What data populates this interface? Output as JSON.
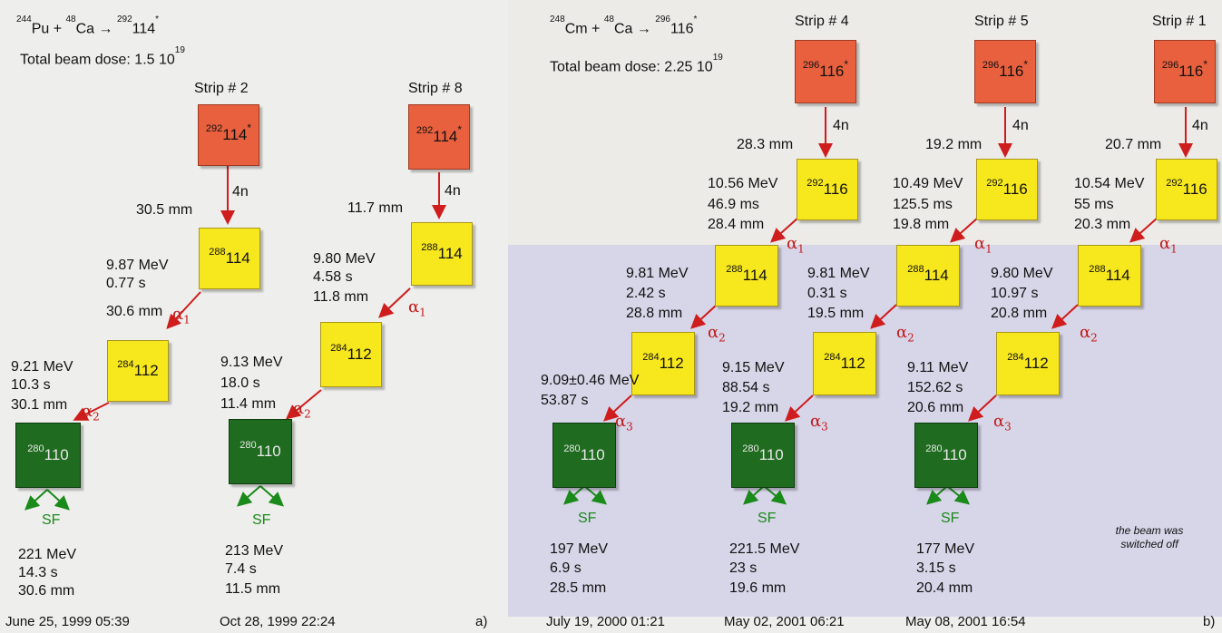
{
  "panel_a": {
    "reaction": {
      "t1": "Pu + ",
      "t2": "Ca → ",
      "t3": "114",
      "n1": "244",
      "n2": "48",
      "n3": "292",
      "star": "*"
    },
    "dose": "Total beam dose: 1.5 10",
    "dose_exp": "19",
    "label": "a)",
    "chains": [
      {
        "strip": "Strip # 2",
        "parent": {
          "mass": "292",
          "el": "114",
          "star": "*"
        },
        "dist0": "30.5 mm",
        "d1": {
          "mass": "288",
          "el": "114",
          "energy": "9.87 MeV",
          "time": "0.77 s",
          "dist": "30.6 mm",
          "alpha": "α",
          "sub": "1"
        },
        "d2": {
          "mass": "284",
          "el": "112",
          "energy": "9.21 MeV",
          "time": "10.3 s",
          "dist": "30.1 mm",
          "alpha": "α",
          "sub": "2"
        },
        "d3": {
          "mass": "280",
          "el": "110"
        },
        "sf": {
          "label": "SF",
          "energy": "221 MeV",
          "time": "14.3 s",
          "dist": "30.6 mm"
        },
        "date": "June 25, 1999 05:39"
      },
      {
        "strip": "Strip # 8",
        "parent": {
          "mass": "292",
          "el": "114",
          "star": "*"
        },
        "dist0": "11.7 mm",
        "d1": {
          "mass": "288",
          "el": "114",
          "energy": "9.80 MeV",
          "time": "4.58 s",
          "dist": "11.8 mm",
          "alpha": "α",
          "sub": "1"
        },
        "d2": {
          "mass": "284",
          "el": "112",
          "energy": "9.13 MeV",
          "time": "18.0 s",
          "dist": "11.4 mm",
          "alpha": "α",
          "sub": "2"
        },
        "d3": {
          "mass": "280",
          "el": "110"
        },
        "sf": {
          "label": "SF",
          "energy": "213 MeV",
          "time": "7.4 s",
          "dist": "11.5 mm"
        },
        "date": "Oct 28, 1999 22:24"
      }
    ]
  },
  "panel_b": {
    "reaction": {
      "t1": "Cm + ",
      "t2": "Ca → ",
      "t3": "116",
      "n1": "248",
      "n2": "48",
      "n3": "296",
      "star": "*"
    },
    "dose": "Total beam dose: 2.25 10",
    "dose_exp": "19",
    "label": "b)",
    "note": "the beam was switched off",
    "chains": [
      {
        "strip": "Strip # 4",
        "parent": {
          "mass": "296",
          "el": "116",
          "star": "*"
        },
        "dist0": "28.3 mm",
        "d1": {
          "mass": "292",
          "el": "116",
          "energy": "10.56 MeV",
          "time": "46.9 ms",
          "dist": "28.4 mm",
          "alpha": "α",
          "sub": "1"
        },
        "d2": {
          "mass": "288",
          "el": "114",
          "energy": "9.81 MeV",
          "time": "2.42 s",
          "dist": "28.8 mm",
          "alpha": "α",
          "sub": "2"
        },
        "d3": {
          "mass": "284",
          "el": "112",
          "energy": "9.09±0.46 MeV",
          "time": "53.87 s",
          "dist": "",
          "alpha": "α",
          "sub": "3"
        },
        "d4": {
          "mass": "280",
          "el": "110"
        },
        "sf": {
          "label": "SF",
          "energy": "197 MeV",
          "time": "6.9 s",
          "dist": "28.5 mm"
        },
        "date": "July 19, 2000 01:21"
      },
      {
        "strip": "Strip # 5",
        "parent": {
          "mass": "296",
          "el": "116",
          "star": "*"
        },
        "dist0": "19.2 mm",
        "d1": {
          "mass": "292",
          "el": "116",
          "energy": "10.49 MeV",
          "time": "125.5 ms",
          "dist": "19.8 mm",
          "alpha": "α",
          "sub": "1"
        },
        "d2": {
          "mass": "288",
          "el": "114",
          "energy": "9.81 MeV",
          "time": "0.31 s",
          "dist": "19.5 mm",
          "alpha": "α",
          "sub": "2"
        },
        "d3": {
          "mass": "284",
          "el": "112",
          "energy": "9.15 MeV",
          "time": "88.54 s",
          "dist": "19.2 mm",
          "alpha": "α",
          "sub": "3"
        },
        "d4": {
          "mass": "280",
          "el": "110"
        },
        "sf": {
          "label": "SF",
          "energy": "221.5 MeV",
          "time": "23 s",
          "dist": "19.6 mm"
        },
        "date": "May 02, 2001 06:21"
      },
      {
        "strip": "Strip # 1",
        "parent": {
          "mass": "296",
          "el": "116",
          "star": "*"
        },
        "dist0": "20.7 mm",
        "d1": {
          "mass": "292",
          "el": "116",
          "energy": "10.54 MeV",
          "time": "55 ms",
          "dist": "20.3 mm",
          "alpha": "α",
          "sub": "1"
        },
        "d2": {
          "mass": "288",
          "el": "114",
          "energy": "9.80 MeV",
          "time": "10.97 s",
          "dist": "20.8 mm",
          "alpha": "α",
          "sub": "2"
        },
        "d3": {
          "mass": "284",
          "el": "112",
          "energy": "9.11 MeV",
          "time": "152.62 s",
          "dist": "20.6 mm",
          "alpha": "α",
          "sub": "3"
        },
        "d4": {
          "mass": "280",
          "el": "110"
        },
        "sf": {
          "label": "SF",
          "energy": "177 MeV",
          "time": "3.15 s",
          "dist": "20.4 mm"
        },
        "date": "May 08, 2001 16:54"
      }
    ]
  },
  "neutron_label": "4n"
}
